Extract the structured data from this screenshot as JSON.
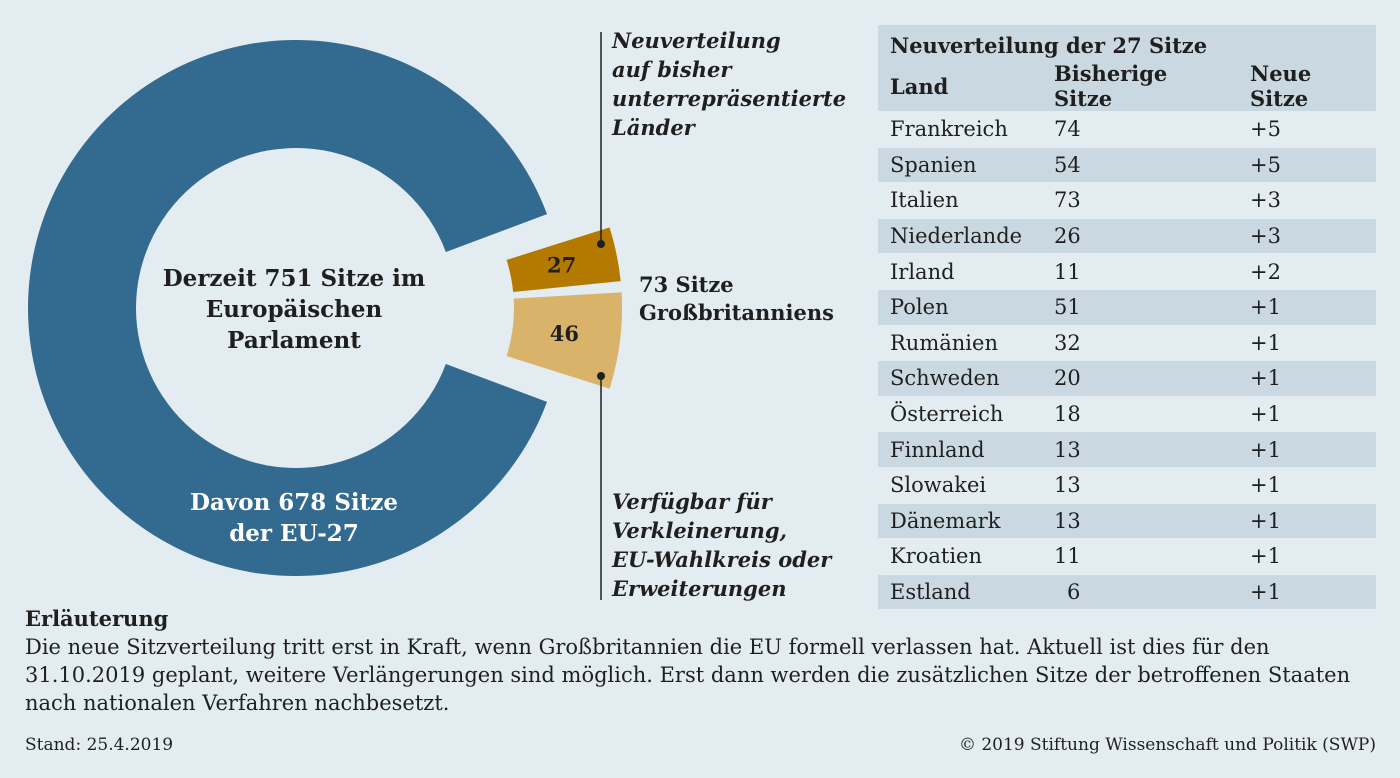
{
  "chart_data": {
    "type": "pie",
    "center_label": [
      "Derzeit 751 Sitze im",
      "Europäischen",
      "Parlament"
    ],
    "slices": [
      {
        "value": 678,
        "label": [
          "Davon 678 Sitze",
          "der EU-27"
        ],
        "color": "#336b90"
      },
      {
        "value": 27,
        "label": "27",
        "color": "#b47a00"
      },
      {
        "value": 46,
        "label": "46",
        "color": "#d9b36a"
      }
    ],
    "group_label": [
      "73 Sitze",
      "Großbritanniens"
    ],
    "annotations": [
      [
        "Neuverteilung",
        "auf bisher",
        "unterrepräsentierte",
        "Länder"
      ],
      [
        "Verfügbar für",
        "Verkleinerung,",
        "EU-Wahlkreis oder",
        "Erweiterungen"
      ]
    ],
    "table": {
      "title": "Neuverteilung der 27 Sitze",
      "columns": [
        "Land",
        "Bisherige Sitze",
        "Neue Sitze"
      ],
      "rows": [
        [
          "Frankreich",
          "74",
          "+5"
        ],
        [
          "Spanien",
          "54",
          "+5"
        ],
        [
          "Italien",
          "73",
          "+3"
        ],
        [
          "Niederlande",
          "26",
          "+3"
        ],
        [
          "Irland",
          "11",
          "+2"
        ],
        [
          "Polen",
          "51",
          "+1"
        ],
        [
          "Rumänien",
          "32",
          "+1"
        ],
        [
          "Schweden",
          "20",
          "+1"
        ],
        [
          "Österreich",
          "18",
          "+1"
        ],
        [
          "Finnland",
          "13",
          "+1"
        ],
        [
          "Slowakei",
          "13",
          "+1"
        ],
        [
          "Dänemark",
          "13",
          "+1"
        ],
        [
          "Kroatien",
          "11",
          "+1"
        ],
        [
          "Estland",
          "6",
          "+1"
        ]
      ]
    }
  },
  "explanation": {
    "title": "Erläuterung",
    "text": "Die neue Sitzverteilung tritt erst in Kraft, wenn Großbritannien die EU formell verlassen hat. Aktuell ist dies für den 31.10.2019 geplant, weitere Verlängerungen sind möglich. Erst dann werden die zusätzlichen Sitze der betroffenen Staaten nach nationalen Verfahren nachbesetzt."
  },
  "footer": {
    "date": "Stand: 25.4.2019",
    "copyright": "© 2019 Stiftung Wissenschaft und Politik (SWP)"
  }
}
